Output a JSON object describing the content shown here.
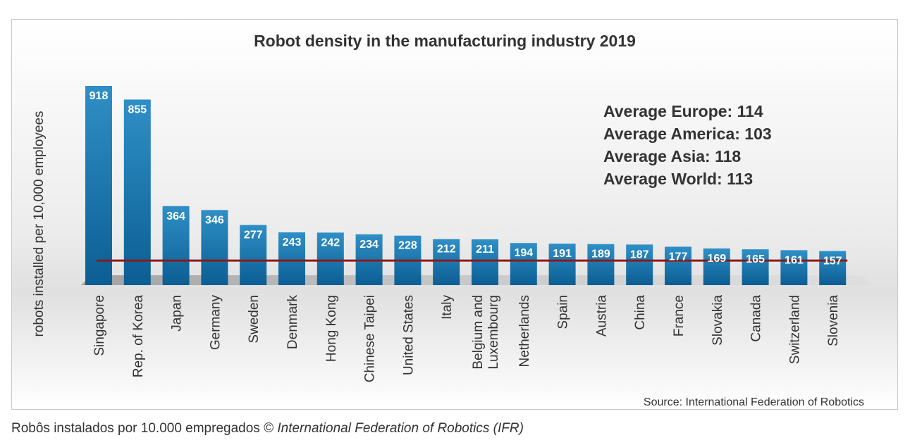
{
  "chart_data": {
    "type": "bar",
    "title": "Robot density in the manufacturing industry 2019",
    "ylabel": "robots installed per 10,000 employees",
    "xlabel": "",
    "categories": [
      [
        "Singapore"
      ],
      [
        "Rep. of Korea"
      ],
      [
        "Japan"
      ],
      [
        "Germany"
      ],
      [
        "Sweden"
      ],
      [
        "Denmark"
      ],
      [
        "Hong Kong"
      ],
      [
        "Chinese Taipei"
      ],
      [
        "United States"
      ],
      [
        "Italy"
      ],
      [
        "Belgium and",
        "Luxembourg"
      ],
      [
        "Netherlands"
      ],
      [
        "Spain"
      ],
      [
        "Austria"
      ],
      [
        "China"
      ],
      [
        "France"
      ],
      [
        "Slovakia"
      ],
      [
        "Canada"
      ],
      [
        "Switzerland"
      ],
      [
        "Slovenia"
      ]
    ],
    "values": [
      918,
      855,
      364,
      346,
      277,
      243,
      242,
      234,
      228,
      212,
      211,
      194,
      191,
      189,
      187,
      177,
      169,
      165,
      161,
      157
    ],
    "reference_line": {
      "value": 113,
      "color": "#8b1a1a"
    },
    "annotations": [
      "Average Europe: 114",
      "Average America: 103",
      "Average Asia: 118",
      "Average World: 113"
    ],
    "source": "Source: International Federation of Robotics",
    "bar_color_top": "#2f8fc6",
    "bar_color_bottom": "#0b5e93",
    "value_label_color": "#ffffff"
  },
  "caption": {
    "text": "Robôs instalados por 10.000 empregados © ",
    "source": "International Federation of Robotics (IFR)"
  }
}
